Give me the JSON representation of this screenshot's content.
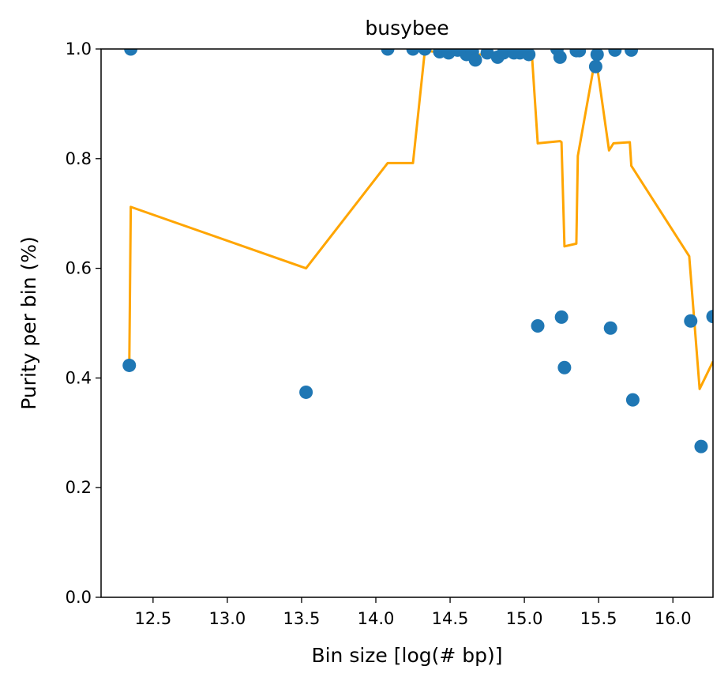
{
  "chart_data": {
    "type": "scatter",
    "title": "busybee",
    "xlabel": "Bin size [log(# bp)]",
    "ylabel": "Purity per bin (%)",
    "xlim": [
      12.15,
      16.27
    ],
    "ylim": [
      0.0,
      1.0
    ],
    "xticks": [
      12.5,
      13.0,
      13.5,
      14.0,
      14.5,
      15.0,
      15.5,
      16.0
    ],
    "xtick_labels": [
      "12.5",
      "13.0",
      "13.5",
      "14.0",
      "14.5",
      "15.0",
      "15.5",
      "16.0"
    ],
    "yticks": [
      0.0,
      0.2,
      0.4,
      0.6,
      0.8,
      1.0
    ],
    "ytick_labels": [
      "0.0",
      "0.2",
      "0.4",
      "0.6",
      "0.8",
      "1.0"
    ],
    "grid": false,
    "colors": {
      "points": "#1f77b4",
      "line": "#ffa500"
    },
    "series": [
      {
        "type": "scatter",
        "x": [
          12.34,
          12.35,
          13.53,
          14.08,
          14.25,
          14.33,
          14.43,
          14.49,
          14.55,
          14.61,
          14.65,
          14.67,
          14.75,
          14.82,
          14.86,
          14.93,
          14.97,
          15.03,
          15.09,
          15.22,
          15.24,
          15.25,
          15.27,
          15.35,
          15.37,
          15.48,
          15.49,
          15.58,
          15.61,
          15.72,
          15.73,
          16.12,
          16.19,
          16.27
        ],
        "y": [
          0.423,
          1.0,
          0.374,
          1.0,
          1.0,
          1.0,
          0.995,
          0.993,
          0.998,
          0.99,
          0.995,
          0.98,
          0.993,
          0.985,
          0.993,
          0.993,
          0.993,
          0.99,
          0.495,
          1.0,
          0.985,
          0.511,
          0.419,
          0.997,
          0.997,
          0.968,
          0.99,
          0.491,
          0.998,
          0.998,
          0.36,
          0.504,
          0.275,
          0.512
        ]
      },
      {
        "type": "line",
        "x": [
          12.34,
          12.35,
          13.53,
          14.08,
          14.25,
          14.33,
          14.4,
          14.5,
          14.6,
          14.65,
          14.7,
          14.8,
          14.85,
          14.95,
          15.0,
          15.05,
          15.09,
          15.24,
          15.25,
          15.27,
          15.35,
          15.36,
          15.48,
          15.57,
          15.6,
          15.71,
          15.72,
          16.11,
          16.18,
          16.27
        ],
        "y": [
          0.423,
          0.712,
          0.6,
          0.792,
          0.792,
          0.997,
          0.995,
          0.995,
          0.993,
          0.985,
          0.99,
          0.99,
          0.993,
          0.99,
          0.993,
          0.993,
          0.828,
          0.832,
          0.83,
          0.64,
          0.645,
          0.805,
          0.987,
          0.815,
          0.828,
          0.83,
          0.787,
          0.622,
          0.38,
          0.43
        ]
      }
    ]
  }
}
